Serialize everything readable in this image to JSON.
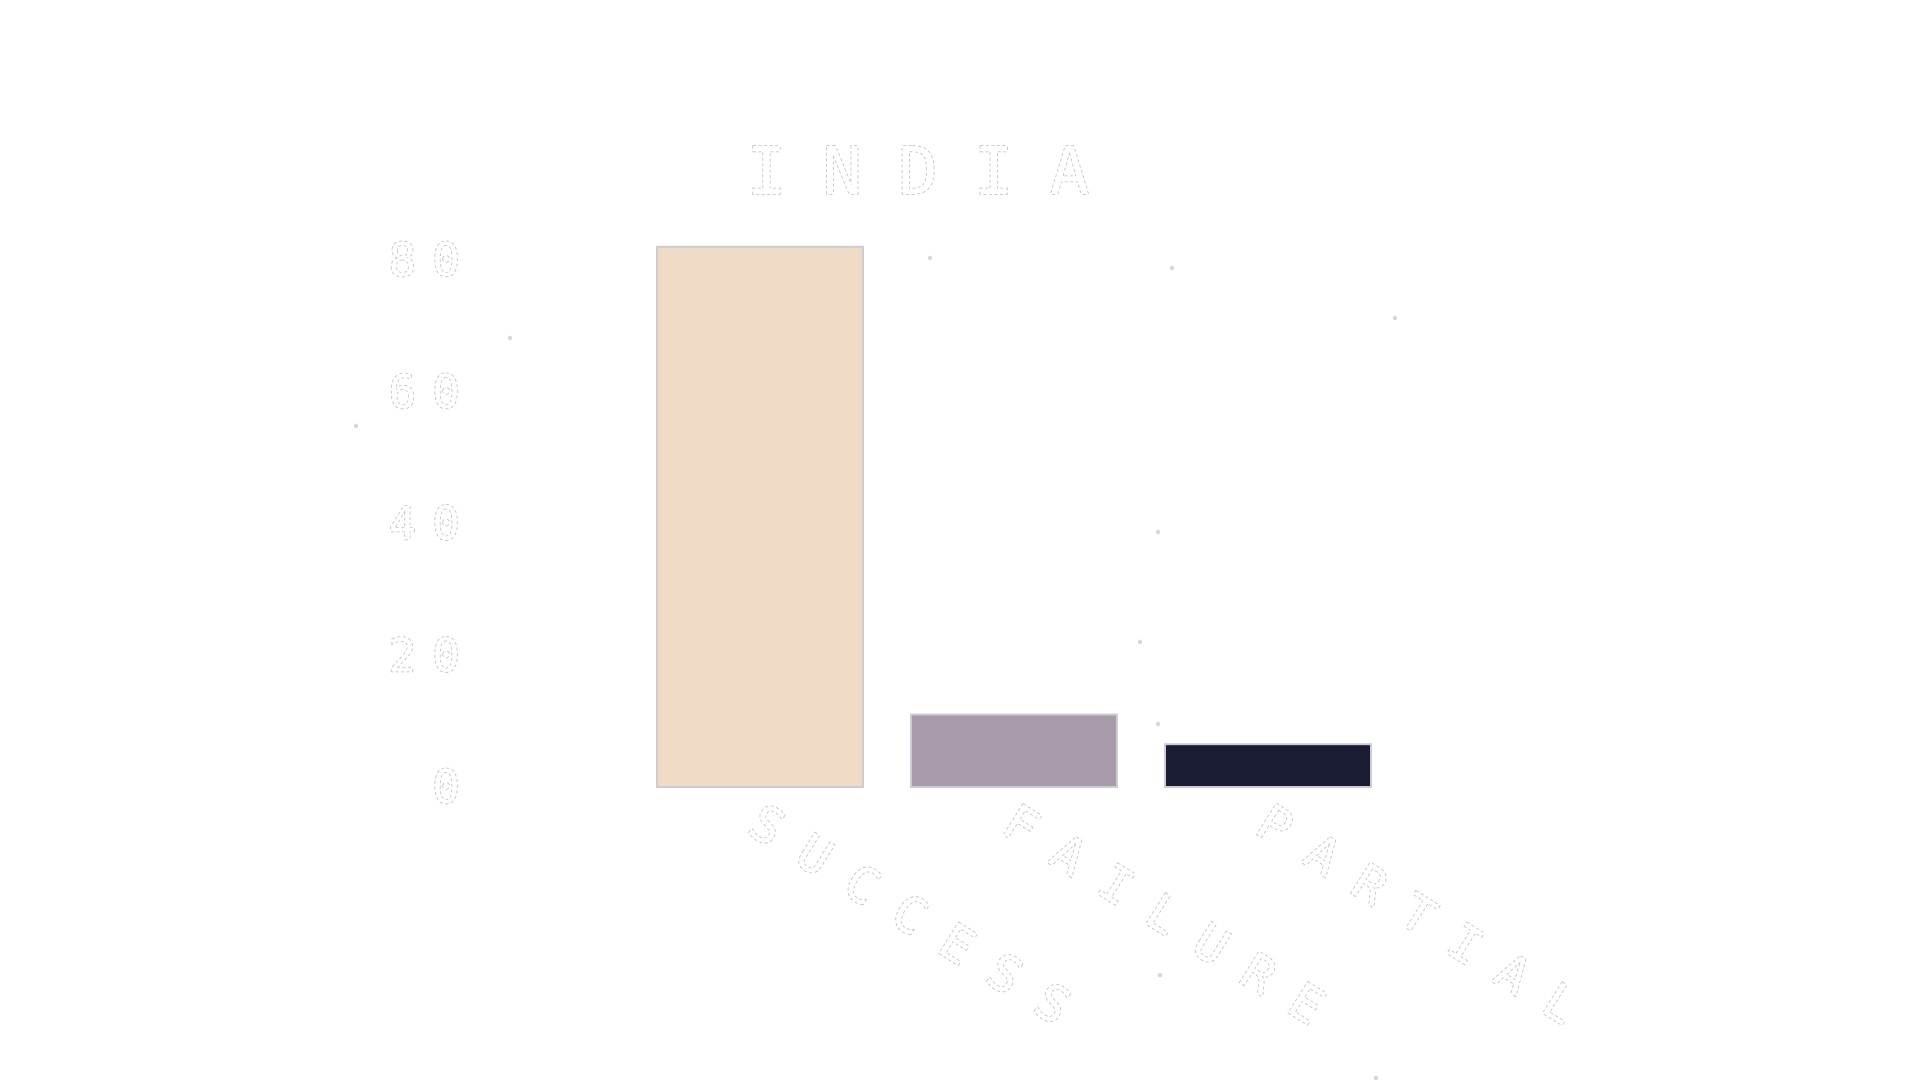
{
  "chart_data": {
    "type": "bar",
    "title": "INDIA",
    "xlabel": "",
    "ylabel": "",
    "categories": [
      "SUCCESS",
      "FAILURE",
      "PARTIAL"
    ],
    "values": [
      82,
      11,
      6.5
    ],
    "ylim": [
      0,
      80
    ],
    "yticks": [
      0,
      20,
      40,
      60,
      80
    ],
    "colors": [
      "#f0dcc6",
      "#a79aa9",
      "#191c33"
    ],
    "grid": false,
    "legend": "none"
  }
}
